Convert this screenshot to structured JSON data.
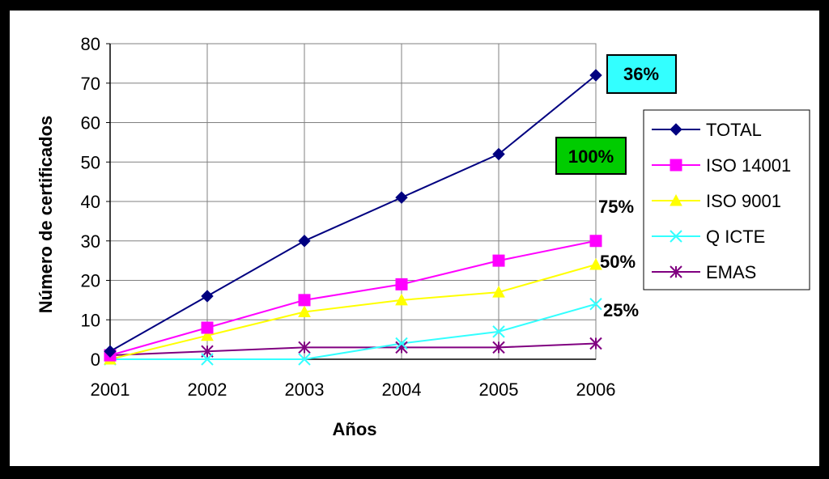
{
  "chart_data": {
    "type": "line",
    "title": "",
    "xlabel": "Años",
    "ylabel": "Número de certificados",
    "categories": [
      "2001",
      "2002",
      "2003",
      "2004",
      "2005",
      "2006"
    ],
    "ylim": [
      0,
      80
    ],
    "yticks": [
      0,
      10,
      20,
      30,
      40,
      50,
      60,
      70,
      80
    ],
    "grid": true,
    "legend_position": "right",
    "series": [
      {
        "name": "TOTAL",
        "color": "#000080",
        "marker": "diamond",
        "values": [
          2,
          16,
          30,
          41,
          52,
          72
        ]
      },
      {
        "name": "ISO 14001",
        "color": "#ff00ff",
        "marker": "square",
        "values": [
          1,
          8,
          15,
          19,
          25,
          30
        ]
      },
      {
        "name": "ISO 9001",
        "color": "#ffff00",
        "marker": "triangle",
        "values": [
          0,
          6,
          12,
          15,
          17,
          24
        ]
      },
      {
        "name": "Q ICTE",
        "color": "#33ffff",
        "marker": "x",
        "values": [
          0,
          0,
          0,
          4,
          7,
          14
        ]
      },
      {
        "name": "EMAS",
        "color": "#800080",
        "marker": "asterisk",
        "values": [
          1,
          2,
          3,
          3,
          3,
          4
        ]
      }
    ],
    "annotations": [
      {
        "text": "36%",
        "style": "badge",
        "color": "#33ffff"
      },
      {
        "text": "100%",
        "style": "badge",
        "color": "#00cc00"
      },
      {
        "text": "75%",
        "style": "plain"
      },
      {
        "text": "50%",
        "style": "plain"
      },
      {
        "text": "25%",
        "style": "plain"
      }
    ]
  }
}
